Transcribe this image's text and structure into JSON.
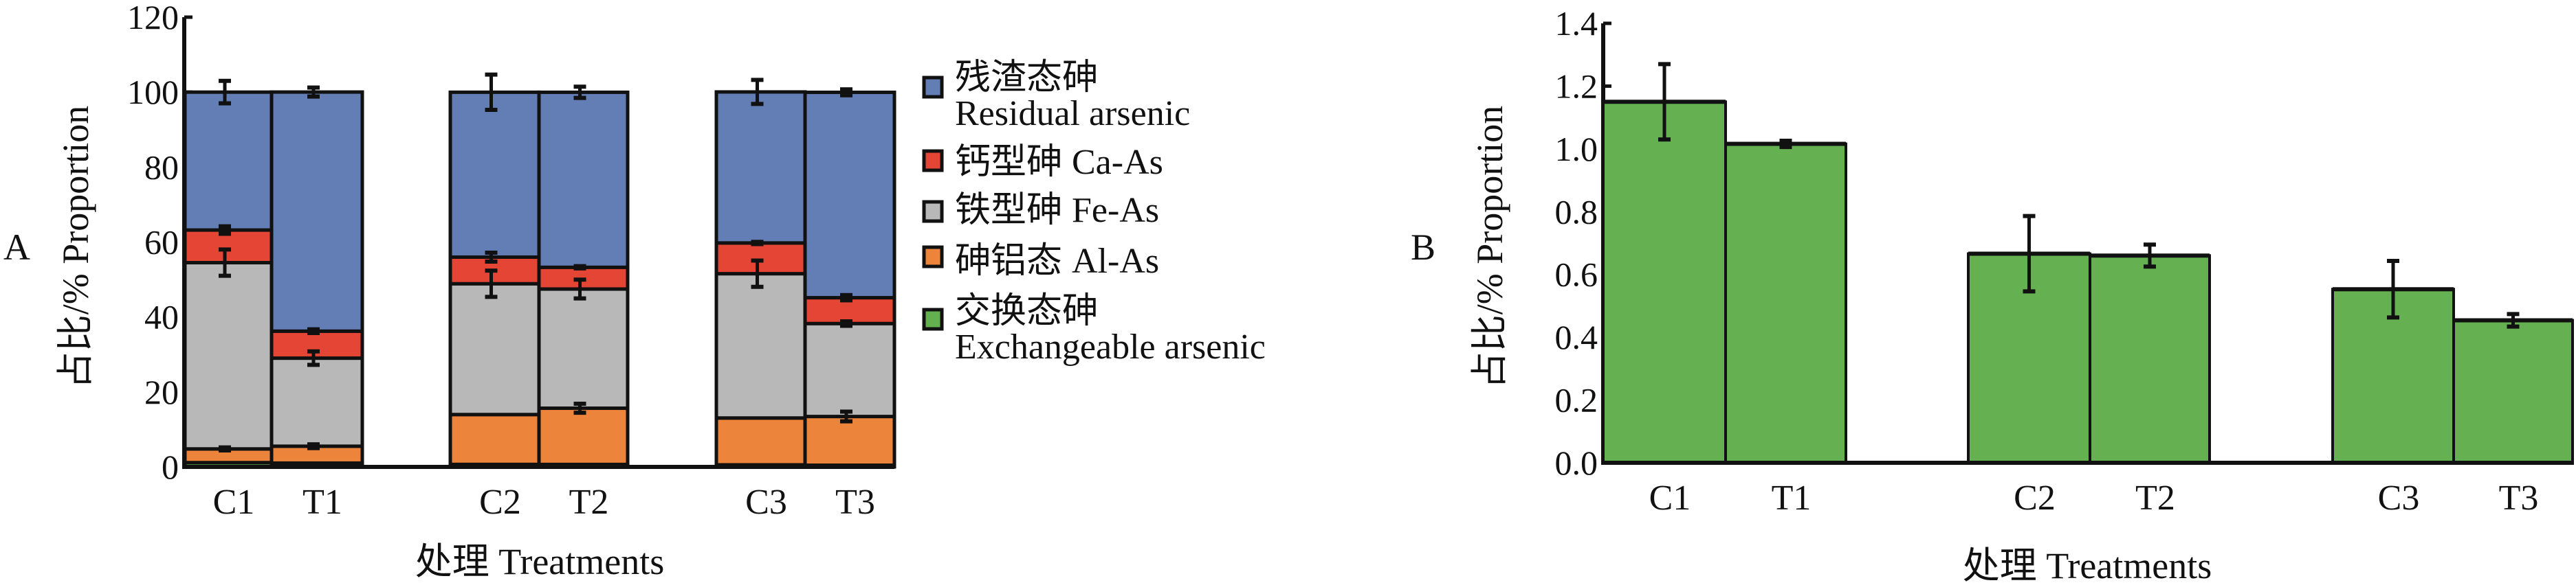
{
  "chart_data": [
    {
      "type": "bar",
      "stacked": true,
      "panel_label": "A",
      "ylabel": "占比/%  Proportion",
      "xlabel": "处理  Treatments",
      "ylim": [
        0,
        120
      ],
      "yticks": [
        "0",
        "20",
        "40",
        "60",
        "80",
        "100",
        "120"
      ],
      "categories": [
        "C1",
        "T1",
        "C2",
        "T2",
        "C3",
        "T3"
      ],
      "groups": [
        [
          "C1",
          "T1"
        ],
        [
          "C2",
          "T2"
        ],
        [
          "C3",
          "T3"
        ]
      ],
      "legend_position": "right",
      "series": [
        {
          "name_cn": "交换态砷",
          "name_en": "Exchangeable arsenic",
          "color": "#63b04f",
          "values": [
            1.15,
            1.02,
            0.67,
            0.66,
            0.55,
            0.45
          ],
          "errors": [
            0,
            0,
            0,
            0,
            0,
            0
          ]
        },
        {
          "name_cn": "砷铝态",
          "name_en": "Al-As",
          "color": "#ed843b",
          "values": [
            3.65,
            4.5,
            13.3,
            15.0,
            12.5,
            13.0
          ],
          "errors": [
            0.4,
            0.5,
            0,
            1.2,
            0,
            1.3
          ]
        },
        {
          "name_cn": "铁型砷",
          "name_en": "Fe-As",
          "color": "#b8b8b8",
          "values": [
            49.7,
            23.5,
            34.9,
            31.8,
            38.5,
            24.8
          ],
          "errors": [
            3.5,
            1.8,
            3.5,
            2.5,
            3.5,
            0.6
          ]
        },
        {
          "name_cn": "钙型砷",
          "name_en": "Ca-As",
          "color": "#e54535",
          "values": [
            8.7,
            7.2,
            7.1,
            5.8,
            8.2,
            6.9
          ],
          "errors": [
            1.0,
            0.5,
            1.2,
            0.3,
            0.3,
            0.7
          ]
        },
        {
          "name_cn": "残渣态砷",
          "name_en": "Residual arsenic",
          "color": "#637db5",
          "values": [
            36.8,
            63.8,
            44.0,
            46.7,
            40.3,
            54.8
          ],
          "errors": [
            3.0,
            1.2,
            4.7,
            1.5,
            3.2,
            0.8
          ]
        }
      ]
    },
    {
      "type": "bar",
      "panel_label": "B",
      "ylabel": "占比/%  Proportion",
      "xlabel": "处理  Treatments",
      "ylim": [
        0,
        1.4
      ],
      "yticks": [
        "0.0",
        "0.2",
        "0.4",
        "0.6",
        "0.8",
        "1.0",
        "1.2",
        "1.4"
      ],
      "categories": [
        "C1",
        "T1",
        "C2",
        "T2",
        "C3",
        "T3"
      ],
      "groups": [
        [
          "C1",
          "T1"
        ],
        [
          "C2",
          "T2"
        ],
        [
          "C3",
          "T3"
        ]
      ],
      "color": "#65b152",
      "values": [
        1.15,
        1.016,
        0.666,
        0.66,
        0.553,
        0.454
      ],
      "errors": [
        0.12,
        0.01,
        0.12,
        0.035,
        0.09,
        0.02
      ]
    }
  ]
}
